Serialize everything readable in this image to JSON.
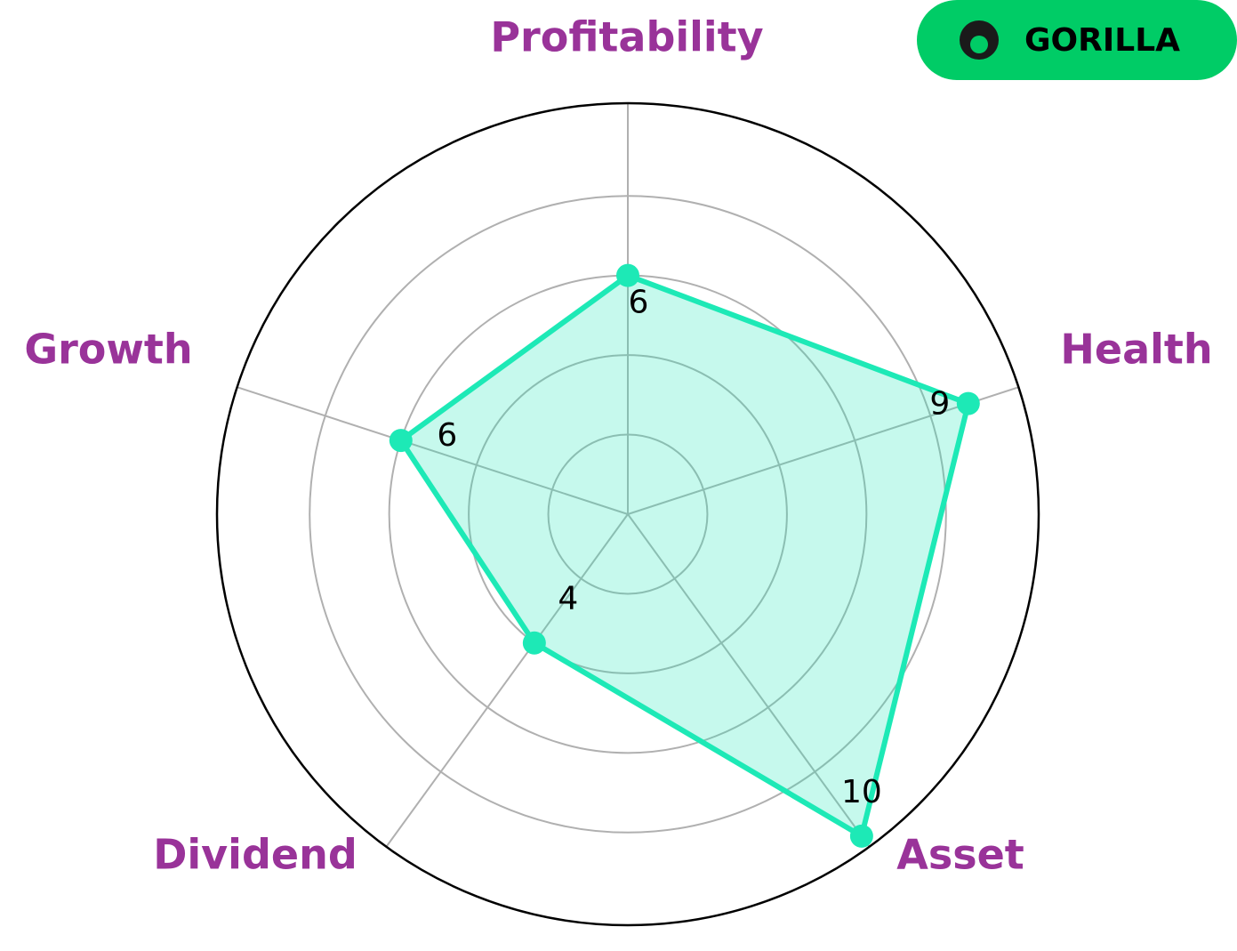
{
  "brand": "GORILLA",
  "chart_data": {
    "type": "radar",
    "categories": [
      "Profitability",
      "Health",
      "Asset",
      "Dividend",
      "Growth"
    ],
    "values": [
      6,
      9,
      10,
      4,
      6
    ],
    "color": "#1de9b6",
    "ylim": [
      0,
      10.33
    ],
    "yticks": [
      2,
      4,
      6,
      8
    ],
    "grid": true
  }
}
